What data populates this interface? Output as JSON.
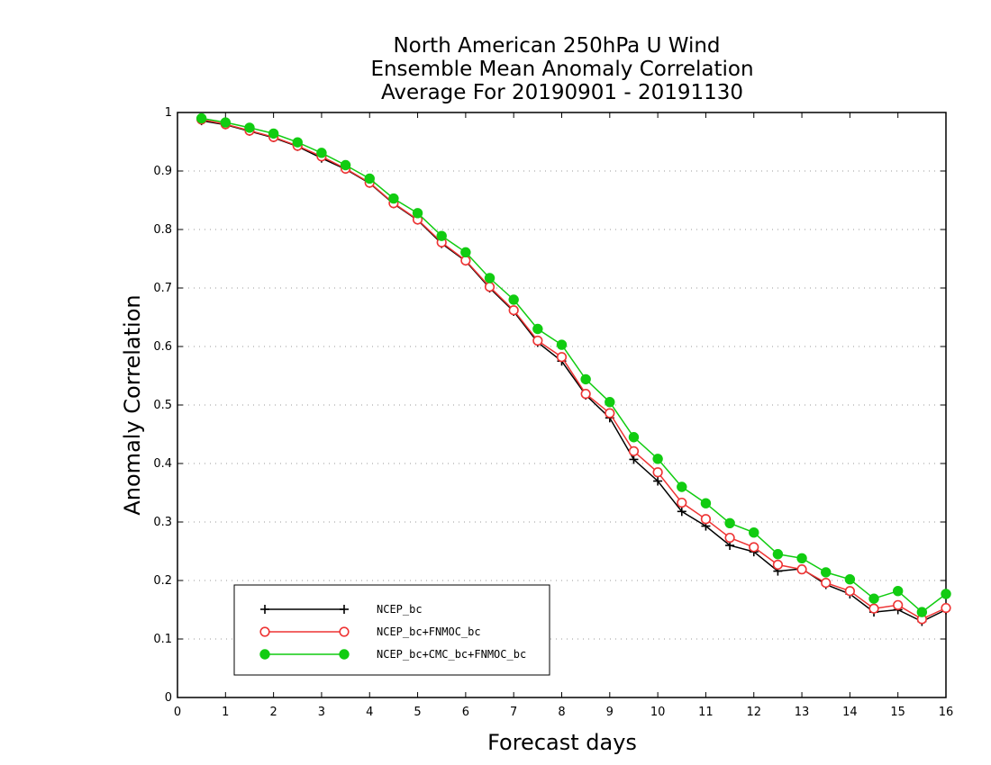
{
  "chart_data": {
    "type": "line",
    "title_lines": [
      "North American 250hPa U Wind",
      "Ensemble Mean Anomaly Correlation",
      "Average For 20190901 - 20191130"
    ],
    "xlabel": "Forecast days",
    "ylabel": "Anomaly Correlation",
    "xlim": [
      0,
      16
    ],
    "ylim": [
      0,
      1
    ],
    "x_ticks": [
      0,
      1,
      2,
      3,
      4,
      5,
      6,
      7,
      8,
      9,
      10,
      11,
      12,
      13,
      14,
      15,
      16
    ],
    "x_tick_labels": [
      "0",
      "1",
      "2",
      "3",
      "4",
      "5",
      "6",
      "7",
      "8",
      "9",
      "10",
      "11",
      "12",
      "13",
      "14",
      "15",
      "16"
    ],
    "y_ticks": [
      0,
      0.1,
      0.2,
      0.3,
      0.4,
      0.5,
      0.6,
      0.7,
      0.8,
      0.9,
      1
    ],
    "y_tick_labels": [
      "0",
      "0.1",
      "0.2",
      "0.3",
      "0.4",
      "0.5",
      "0.6",
      "0.7",
      "0.8",
      "0.9",
      "1"
    ],
    "grid": "horizontal-dotted",
    "legend_position": "bottom-left",
    "x": [
      0.5,
      1,
      1.5,
      2,
      2.5,
      3,
      3.5,
      4,
      4.5,
      5,
      5.5,
      6,
      6.5,
      7,
      7.5,
      8,
      8.5,
      9,
      9.5,
      10,
      10.5,
      11,
      11.5,
      12,
      12.5,
      13,
      13.5,
      14,
      14.5,
      15,
      15.5,
      16
    ],
    "series": [
      {
        "name": "NCEP_bc",
        "color": "#000000",
        "marker": "plus",
        "values": [
          0.986,
          0.979,
          0.968,
          0.957,
          0.942,
          0.922,
          0.903,
          0.879,
          0.844,
          0.816,
          0.776,
          0.746,
          0.7,
          0.66,
          0.607,
          0.575,
          0.517,
          0.478,
          0.407,
          0.37,
          0.318,
          0.293,
          0.26,
          0.249,
          0.216,
          0.22,
          0.193,
          0.177,
          0.146,
          0.15,
          0.13,
          0.15
        ]
      },
      {
        "name": "NCEP_bc+FNMOC_bc",
        "color": "#ee3333",
        "marker": "open-circle",
        "values": [
          0.988,
          0.98,
          0.969,
          0.958,
          0.943,
          0.925,
          0.904,
          0.88,
          0.845,
          0.817,
          0.778,
          0.747,
          0.702,
          0.662,
          0.61,
          0.582,
          0.519,
          0.486,
          0.421,
          0.385,
          0.333,
          0.305,
          0.273,
          0.257,
          0.227,
          0.219,
          0.196,
          0.182,
          0.152,
          0.158,
          0.134,
          0.153
        ]
      },
      {
        "name": "NCEP_bc+CMC_bc+FNMOC_bc",
        "color": "#11cc11",
        "marker": "filled-circle",
        "values": [
          0.99,
          0.983,
          0.974,
          0.964,
          0.949,
          0.931,
          0.91,
          0.887,
          0.853,
          0.828,
          0.789,
          0.761,
          0.717,
          0.68,
          0.63,
          0.603,
          0.544,
          0.505,
          0.445,
          0.408,
          0.36,
          0.332,
          0.298,
          0.282,
          0.245,
          0.238,
          0.214,
          0.202,
          0.169,
          0.182,
          0.146,
          0.177
        ]
      }
    ]
  }
}
